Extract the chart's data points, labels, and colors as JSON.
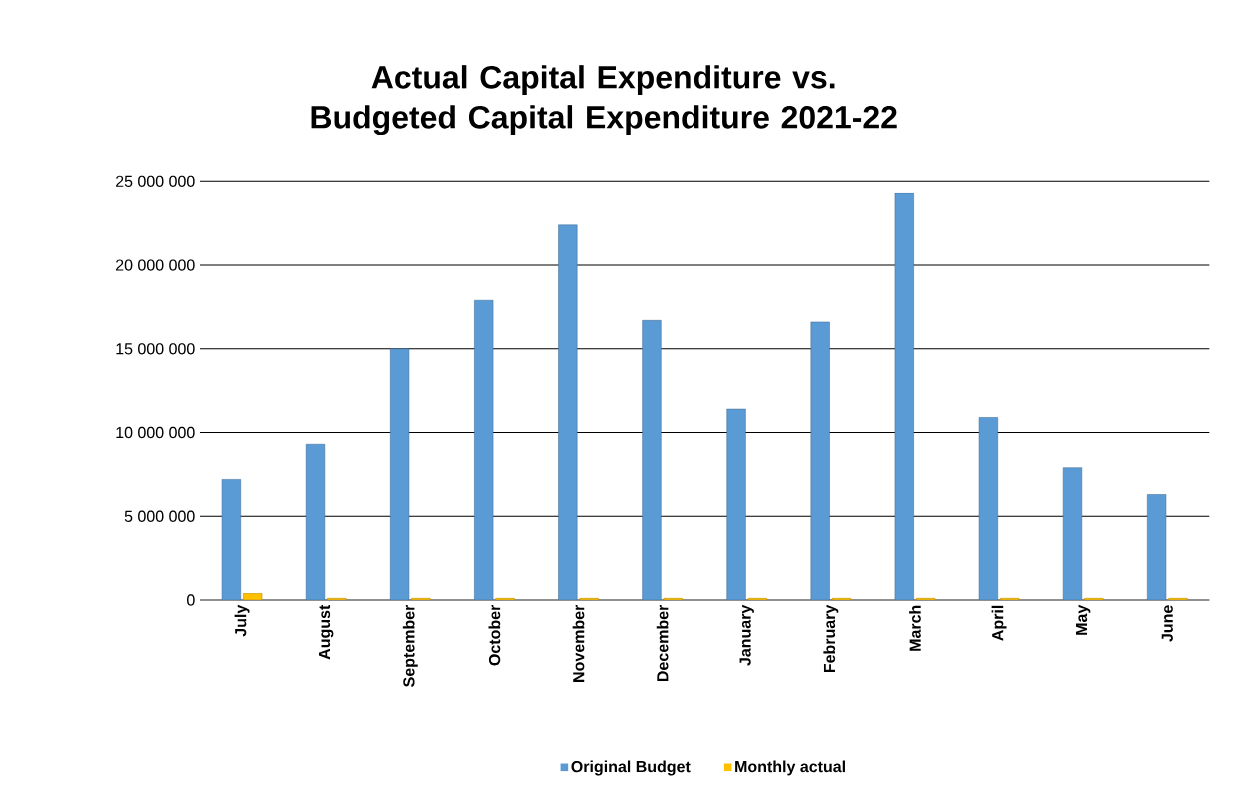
{
  "chart_data": {
    "type": "bar",
    "title": "Actual Capital Expenditure vs. Budgeted Capital Expenditure 2021-22",
    "categories": [
      "July",
      "August",
      "September",
      "October",
      "November",
      "December",
      "January",
      "February",
      "March",
      "April",
      "May",
      "June"
    ],
    "series": [
      {
        "name": "Original Budget",
        "color": "#5b9bd5",
        "values": [
          7200000,
          9300000,
          15000000,
          17900000,
          22400000,
          16700000,
          11400000,
          16600000,
          24300000,
          10900000,
          7900000,
          6300000
        ]
      },
      {
        "name": "Monthly actual",
        "color": "#ffc000",
        "values": [
          400000,
          100000,
          100000,
          100000,
          100000,
          100000,
          100000,
          100000,
          100000,
          100000,
          100000,
          100000
        ]
      }
    ],
    "ylim": [
      0,
      25000000
    ],
    "yticks": [
      {
        "value": 0,
        "label": "0"
      },
      {
        "value": 5000000,
        "label": "5 000 000"
      },
      {
        "value": 10000000,
        "label": "10 000 000"
      },
      {
        "value": 15000000,
        "label": "15 000 000"
      },
      {
        "value": 20000000,
        "label": "20 000 000"
      },
      {
        "value": 25000000,
        "label": "25 000 000"
      }
    ],
    "grid": "y",
    "legend": "bottom"
  }
}
